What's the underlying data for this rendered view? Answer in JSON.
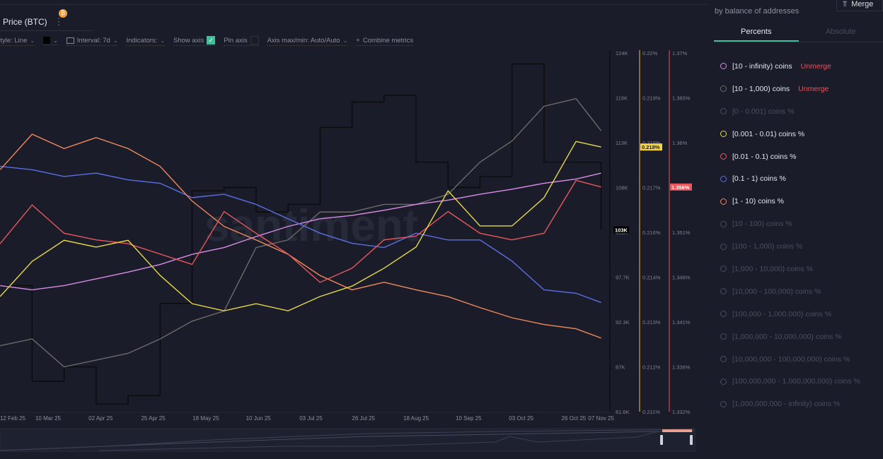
{
  "header": {
    "metric_tab": "Price (BTC)",
    "badge_icon": "bitcoin-icon"
  },
  "toolbar": {
    "style": "Style: Line",
    "interval": "Interval: 7d",
    "indicators": "Indicators:",
    "show_axis": "Show axis",
    "show_axis_checked": true,
    "pin_axis": "Pin axis",
    "pin_axis_checked": false,
    "axis_maxmin": "Axis max/min: Auto/Auto",
    "combine": "Combine metrics",
    "color_swatch": "#000000"
  },
  "sidebar": {
    "subtitle": "by balance of addresses",
    "merge_label": "Merge",
    "tabs": [
      {
        "label": "Percents",
        "active": true
      },
      {
        "label": "Absolute",
        "active": false
      }
    ],
    "items": [
      {
        "label": "[10 - infinity) coins",
        "unmerge": "Unmerge",
        "color": "#d98ce6",
        "active": true
      },
      {
        "label": "[10 - 1,000) coins",
        "unmerge": "Unmerge",
        "color": "#6e6a6a",
        "active": true
      },
      {
        "label": "[0 - 0.001) coins %",
        "color": "#4a4e62",
        "active": false
      },
      {
        "label": "[0.001 - 0.01) coins %",
        "color": "#e6d84a",
        "active": true
      },
      {
        "label": "[0.01 - 0.1) coins %",
        "color": "#e8585c",
        "active": true
      },
      {
        "label": "[0.1 - 1) coins %",
        "color": "#5c6ee6",
        "active": true
      },
      {
        "label": "[1 - 10) coins %",
        "color": "#f08a5d",
        "active": true
      },
      {
        "label": "[10 - 100) coins %",
        "color": "#4a4e62",
        "active": false
      },
      {
        "label": "[100 - 1,000) coins %",
        "color": "#4a4e62",
        "active": false
      },
      {
        "label": "[1,000 - 10,000) coins %",
        "color": "#4a4e62",
        "active": false
      },
      {
        "label": "[10,000 - 100,000) coins %",
        "color": "#4a4e62",
        "active": false
      },
      {
        "label": "[100,000 - 1,000,000) coins %",
        "color": "#4a4e62",
        "active": false
      },
      {
        "label": "[1,000,000 - 10,000,000) coins %",
        "color": "#4a4e62",
        "active": false
      },
      {
        "label": "[10,000,000 - 100,000,000) coins %",
        "color": "#4a4e62",
        "active": false
      },
      {
        "label": "[100,000,000 - 1,000,000,000) coins %",
        "color": "#4a4e62",
        "active": false
      },
      {
        "label": "[1,000,000,000 - infinity) coins %",
        "color": "#4a4e62",
        "active": false
      }
    ]
  },
  "chart_data": {
    "type": "line",
    "watermark": "santiment",
    "x": [
      "2025-02-17",
      "2025-03-03",
      "2025-03-17",
      "2025-03-31",
      "2025-04-14",
      "2025-04-28",
      "2025-05-12",
      "2025-05-26",
      "2025-06-09",
      "2025-06-23",
      "2025-07-07",
      "2025-07-21",
      "2025-08-04",
      "2025-08-18",
      "2025-09-01",
      "2025-09-15",
      "2025-09-29",
      "2025-10-13",
      "2025-10-27",
      "2025-11-07"
    ],
    "xlim": [
      "2025-02-17",
      "2025-11-07"
    ],
    "x_ticks": [
      {
        "label": "12 Feb 25",
        "date": "2025-02-12"
      },
      {
        "label": "10 Mar 25",
        "date": "2025-03-10"
      },
      {
        "label": "02 Apr 25",
        "date": "2025-04-02"
      },
      {
        "label": "25 Apr 25",
        "date": "2025-04-25"
      },
      {
        "label": "18 May 25",
        "date": "2025-05-18"
      },
      {
        "label": "10 Jun 25",
        "date": "2025-06-10"
      },
      {
        "label": "03 Jul 25",
        "date": "2025-07-03"
      },
      {
        "label": "26 Jul 25",
        "date": "2025-07-26"
      },
      {
        "label": "18 Aug 25",
        "date": "2025-08-18"
      },
      {
        "label": "10 Sep 25",
        "date": "2025-09-10"
      },
      {
        "label": "03 Oct 25",
        "date": "2025-10-03"
      },
      {
        "label": "26 Oct 25",
        "date": "2025-10-26"
      },
      {
        "label": "07 Nov 25",
        "date": "2025-11-07"
      }
    ],
    "axes": [
      {
        "id": "price",
        "ticks": [
          "124K",
          "119K",
          "113K",
          "108K",
          "103K",
          "97.7K",
          "92.3K",
          "87K",
          "81.6K"
        ],
        "ylim": [
          81.6,
          124
        ],
        "current": "103K",
        "current_value": 103.1,
        "current_bg": "#000000",
        "line_color": "#1a1c29"
      },
      {
        "id": "yellow",
        "ticks": [
          "0.22%",
          "0.219%",
          "0.218%",
          "0.217%",
          "0.216%",
          "0.214%",
          "0.213%",
          "0.212%",
          "0.211%"
        ],
        "ylim": [
          0.211,
          0.22
        ],
        "current": "0.218%",
        "current_value": 0.21764,
        "current_bg": "#f5d442",
        "line_color": "#c9a25a"
      },
      {
        "id": "red",
        "ticks": [
          "1.37%",
          "1.365%",
          "1.36%",
          "1.356%",
          "1.351%",
          "1.346%",
          "1.341%",
          "1.336%",
          "1.332%"
        ],
        "ylim": [
          1.332,
          1.37
        ],
        "current": "1.356%",
        "current_value": 1.3558,
        "current_bg": "#e8585c",
        "line_color": "#c84a4e"
      }
    ],
    "series": [
      {
        "name": "Price (BTC)",
        "axis": "price",
        "color": "#0b0b0b",
        "step": true,
        "values": [
          96.5,
          85.2,
          86.9,
          82.5,
          83.5,
          94.4,
          107.7,
          108.1,
          105.2,
          106.1,
          115.2,
          118.2,
          119.0,
          111.1,
          108.1,
          109.4,
          122.7,
          111.1,
          111.1,
          103.1
        ]
      },
      {
        "name": "[10 - 1,000) coins",
        "axis": "price",
        "color": "#6e6a6a",
        "values": [
          89.4,
          90.2,
          86.9,
          87.7,
          88.5,
          90.2,
          92.3,
          93.5,
          101.0,
          101.9,
          105.2,
          105.2,
          106.1,
          106.1,
          107.3,
          111.1,
          113.6,
          117.7,
          118.6,
          114.8
        ]
      },
      {
        "name": "[10 - infinity) coins",
        "axis": "price",
        "color": "#d98ce6",
        "values": [
          96.5,
          96.0,
          96.5,
          97.3,
          98.1,
          99.0,
          100.2,
          101.0,
          102.3,
          103.5,
          104.4,
          104.8,
          105.4,
          106.1,
          106.6,
          107.3,
          107.9,
          108.6,
          109.1,
          109.8
        ]
      },
      {
        "name": "[0.1 - 1) coins %",
        "axis": "price",
        "color": "#5c6ee6",
        "values": [
          110.6,
          110.2,
          109.4,
          109.8,
          109.0,
          108.6,
          106.9,
          107.3,
          106.1,
          104.4,
          102.7,
          101.5,
          101.0,
          102.7,
          101.9,
          101.9,
          99.4,
          96.0,
          95.6,
          94.5
        ]
      },
      {
        "name": "[1 - 10) coins %",
        "axis": "price",
        "color": "#f08a5d",
        "values": [
          110.2,
          114.4,
          112.7,
          114.0,
          112.7,
          110.6,
          106.5,
          103.5,
          101.9,
          100.2,
          97.7,
          96.0,
          96.9,
          96.0,
          95.2,
          93.9,
          92.7,
          91.9,
          91.4,
          90.3
        ]
      },
      {
        "name": "[0.01 - 0.1) coins %",
        "axis": "red",
        "color": "#e8585c",
        "values": [
          1.3498,
          1.3539,
          1.3509,
          1.3502,
          1.3498,
          1.3487,
          1.3476,
          1.3532,
          1.3509,
          1.3487,
          1.3457,
          1.3472,
          1.3502,
          1.3506,
          1.3532,
          1.3509,
          1.3502,
          1.3509,
          1.3565,
          1.3558
        ]
      },
      {
        "name": "[0.001 - 0.01) coins %",
        "axis": "yellow",
        "color": "#e6d84a",
        "values": [
          0.21389,
          0.21477,
          0.2153,
          0.21513,
          0.2153,
          0.21442,
          0.21371,
          0.21353,
          0.21371,
          0.21353,
          0.21389,
          0.21415,
          0.2146,
          0.21513,
          0.21654,
          0.21566,
          0.21566,
          0.21637,
          0.21778,
          0.21764
        ]
      }
    ]
  }
}
